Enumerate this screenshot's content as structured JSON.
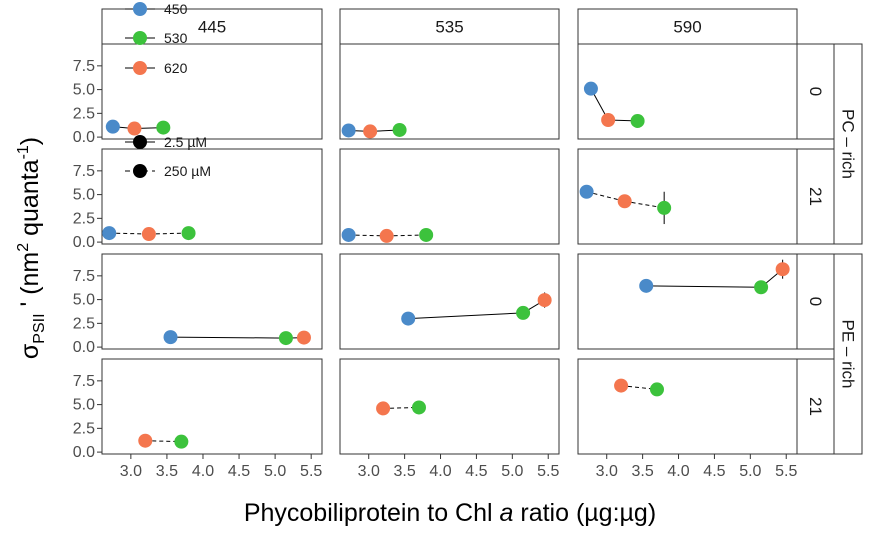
{
  "chart_data": {
    "type": "scatter",
    "xlabel_parts": [
      "Phycobiliprotein to Chl ",
      "a",
      " ratio (µg:µg)"
    ],
    "ylabel_parts": {
      "sigma": "σ",
      "sub": "PSII",
      "prime": " ' (nm",
      "sup1": "2",
      "mid": " quanta",
      "sup2": "-1",
      "close": ")"
    },
    "xlim": [
      2.6,
      5.65
    ],
    "ylim": [
      -0.2,
      9.8
    ],
    "x_ticks": [
      "3.0",
      "3.5",
      "4.0",
      "4.5",
      "5.0",
      "5.5"
    ],
    "x_tick_values": [
      3.0,
      3.5,
      4.0,
      4.5,
      5.0,
      5.5
    ],
    "y_ticks": [
      "0.0",
      "2.5",
      "5.0",
      "7.5"
    ],
    "y_tick_values": [
      0.0,
      2.5,
      5.0,
      7.5
    ],
    "col_strips": [
      "445",
      "535",
      "590"
    ],
    "row_strips": [
      "0",
      "21",
      "0",
      "21"
    ],
    "group_strips": [
      "PC – rich",
      "PE – rich"
    ],
    "legend": {
      "colors": [
        {
          "label": "450",
          "color": "#4a8ac9"
        },
        {
          "label": "530",
          "color": "#3cc23c"
        },
        {
          "label": "620",
          "color": "#f4764e"
        }
      ],
      "linetypes": [
        {
          "label": "2.5 µM",
          "dash": ""
        },
        {
          "label": "250 µM",
          "dash": "5,4"
        }
      ]
    },
    "colors": {
      "450": "#4a8ac9",
      "530": "#3cc23c",
      "620": "#f4764e"
    },
    "panels": [
      {
        "row": 0,
        "col": 0,
        "dashed": false,
        "points": [
          {
            "x": 2.75,
            "y": 1.1,
            "c": "450",
            "err": 0.15
          },
          {
            "x": 3.45,
            "y": 1.0,
            "c": "530",
            "err": 0.1
          },
          {
            "x": 3.05,
            "y": 0.9,
            "c": "620",
            "err": 0.1
          }
        ]
      },
      {
        "row": 0,
        "col": 1,
        "dashed": false,
        "points": [
          {
            "x": 2.72,
            "y": 0.7,
            "c": "450",
            "err": 0.1
          },
          {
            "x": 3.43,
            "y": 0.75,
            "c": "530",
            "err": 0.1
          },
          {
            "x": 3.02,
            "y": 0.6,
            "c": "620",
            "err": 0.1
          }
        ]
      },
      {
        "row": 0,
        "col": 2,
        "dashed": false,
        "points": [
          {
            "x": 2.78,
            "y": 5.1,
            "c": "450",
            "err": 0.3
          },
          {
            "x": 3.43,
            "y": 1.7,
            "c": "530",
            "err": 0.15
          },
          {
            "x": 3.02,
            "y": 1.8,
            "c": "620",
            "err": 0.2
          }
        ]
      },
      {
        "row": 1,
        "col": 0,
        "dashed": true,
        "points": [
          {
            "x": 2.7,
            "y": 0.95,
            "c": "450",
            "err": 0.1
          },
          {
            "x": 3.8,
            "y": 0.95,
            "c": "530",
            "err": 0.1
          },
          {
            "x": 3.25,
            "y": 0.85,
            "c": "620",
            "err": 0.1
          }
        ]
      },
      {
        "row": 1,
        "col": 1,
        "dashed": true,
        "points": [
          {
            "x": 2.72,
            "y": 0.75,
            "c": "450",
            "err": 0.1
          },
          {
            "x": 3.8,
            "y": 0.75,
            "c": "530",
            "err": 0.1
          },
          {
            "x": 3.25,
            "y": 0.65,
            "c": "620",
            "err": 0.1
          }
        ]
      },
      {
        "row": 1,
        "col": 2,
        "dashed": true,
        "points": [
          {
            "x": 2.72,
            "y": 5.3,
            "c": "450",
            "err": 0.3
          },
          {
            "x": 3.8,
            "y": 3.6,
            "c": "530",
            "err": 1.7
          },
          {
            "x": 3.25,
            "y": 4.3,
            "c": "620",
            "err": 0.6
          }
        ]
      },
      {
        "row": 2,
        "col": 0,
        "dashed": false,
        "points": [
          {
            "x": 3.55,
            "y": 1.05,
            "c": "450",
            "err": 0.1
          },
          {
            "x": 5.15,
            "y": 0.95,
            "c": "530",
            "err": 0.1
          },
          {
            "x": 5.4,
            "y": 1.0,
            "c": "620",
            "err": 0.1
          }
        ]
      },
      {
        "row": 2,
        "col": 1,
        "dashed": false,
        "points": [
          {
            "x": 3.55,
            "y": 3.0,
            "c": "450",
            "err": 0.2
          },
          {
            "x": 5.15,
            "y": 3.6,
            "c": "530",
            "err": 0.4
          },
          {
            "x": 5.45,
            "y": 4.95,
            "c": "620",
            "err": 0.8
          }
        ]
      },
      {
        "row": 2,
        "col": 2,
        "dashed": false,
        "points": [
          {
            "x": 3.55,
            "y": 6.45,
            "c": "450",
            "err": 0.2
          },
          {
            "x": 5.15,
            "y": 6.3,
            "c": "530",
            "err": 0.3
          },
          {
            "x": 5.45,
            "y": 8.2,
            "c": "620",
            "err": 1.0
          }
        ]
      },
      {
        "row": 3,
        "col": 0,
        "dashed": true,
        "points": [
          {
            "x": 3.7,
            "y": 1.1,
            "c": "530",
            "err": 0.1
          },
          {
            "x": 3.2,
            "y": 1.2,
            "c": "620",
            "err": 0.15
          }
        ]
      },
      {
        "row": 3,
        "col": 1,
        "dashed": true,
        "points": [
          {
            "x": 3.7,
            "y": 4.7,
            "c": "530",
            "err": 0.2
          },
          {
            "x": 3.2,
            "y": 4.6,
            "c": "620",
            "err": 0.3
          }
        ]
      },
      {
        "row": 3,
        "col": 2,
        "dashed": true,
        "points": [
          {
            "x": 3.7,
            "y": 6.6,
            "c": "530",
            "err": 0.3
          },
          {
            "x": 3.2,
            "y": 7.0,
            "c": "620",
            "err": 0.6
          }
        ]
      }
    ]
  }
}
